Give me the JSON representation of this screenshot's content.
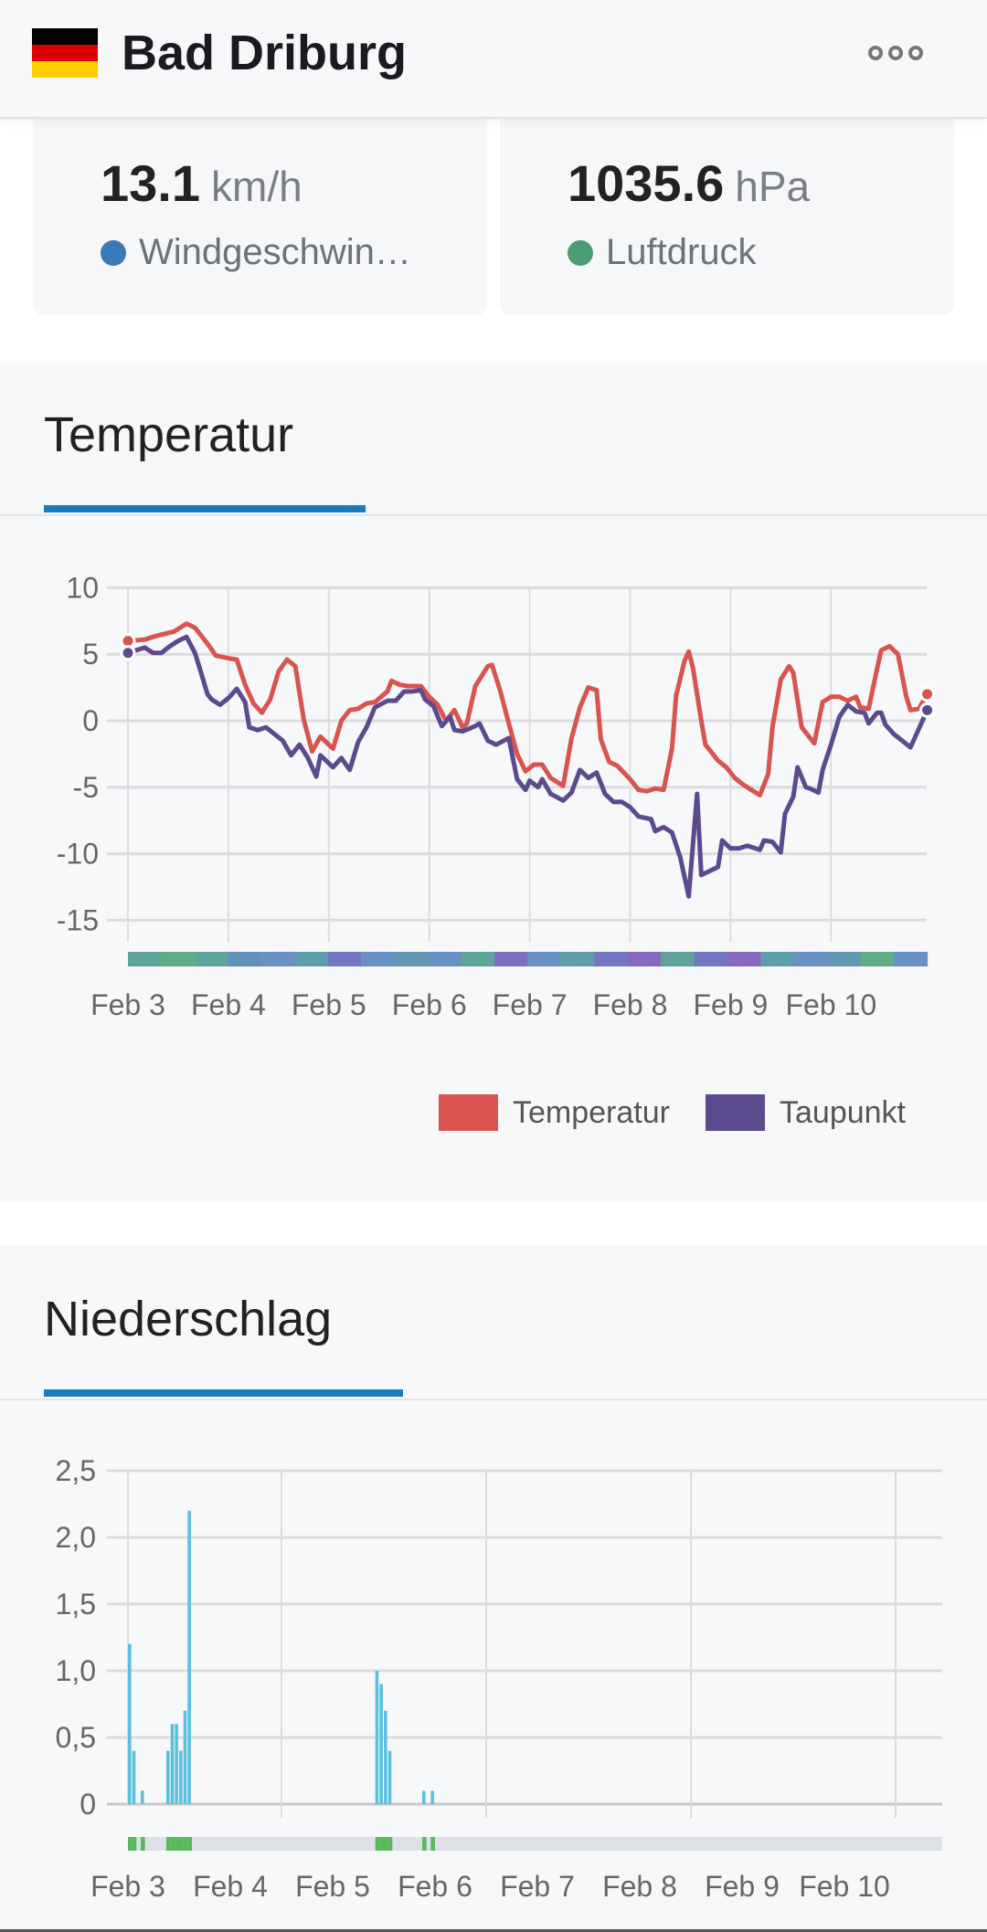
{
  "header": {
    "title": "Bad Driburg",
    "flag_colors": [
      "#000000",
      "#dd0000",
      "#ffce00"
    ],
    "menu_icon": "more-dots-icon"
  },
  "cards": [
    {
      "value": "13.1",
      "unit": "km/h",
      "label": "Windgeschwin…",
      "dot_color": "#3a7ab8"
    },
    {
      "value": "1035.6",
      "unit": "hPa",
      "label": "Luftdruck",
      "dot_color": "#4a9e74"
    }
  ],
  "temperature": {
    "title": "Temperatur",
    "legend": [
      {
        "label": "Temperatur",
        "color": "#d9534f"
      },
      {
        "label": "Taupunkt",
        "color": "#5c4a8f"
      }
    ]
  },
  "precipitation": {
    "title": "Niederschlag"
  },
  "chart_data": [
    {
      "type": "line",
      "title": "Temperatur",
      "x_unit": "hours since Feb 3 00:00",
      "x_ticks": [
        "Feb 3",
        "Feb 4",
        "Feb 5",
        "Feb 6",
        "Feb 7",
        "Feb 8",
        "Feb 9",
        "Feb 10"
      ],
      "y_ticks": [
        "10",
        "5",
        "0",
        "-5",
        "-10",
        "-15"
      ],
      "ylim": [
        -15,
        10
      ],
      "xlim": [
        0,
        191
      ],
      "grid": true,
      "legend_position": "bottom-right",
      "series": [
        {
          "name": "Temperatur",
          "color": "#d9534f",
          "points": [
            [
              0,
              6.0
            ],
            [
              4,
              6.1
            ],
            [
              7,
              6.4
            ],
            [
              11,
              6.7
            ],
            [
              14,
              7.3
            ],
            [
              16,
              7.0
            ],
            [
              19,
              5.8
            ],
            [
              21,
              4.9
            ],
            [
              24,
              4.7
            ],
            [
              26,
              4.6
            ],
            [
              28,
              2.7
            ],
            [
              30,
              1.3
            ],
            [
              32,
              0.6
            ],
            [
              34,
              1.6
            ],
            [
              36,
              3.7
            ],
            [
              38,
              4.6
            ],
            [
              40,
              4.1
            ],
            [
              42,
              0.1
            ],
            [
              44,
              -2.3
            ],
            [
              46,
              -1.2
            ],
            [
              48,
              -1.8
            ],
            [
              49,
              -2.1
            ],
            [
              51,
              0.0
            ],
            [
              53,
              0.8
            ],
            [
              55,
              0.9
            ],
            [
              57,
              1.3
            ],
            [
              59,
              1.4
            ],
            [
              62,
              2.2
            ],
            [
              63,
              3.0
            ],
            [
              65,
              2.7
            ],
            [
              67,
              2.6
            ],
            [
              70,
              2.6
            ],
            [
              72,
              1.8
            ],
            [
              74,
              1.2
            ],
            [
              76,
              0.0
            ],
            [
              78,
              0.8
            ],
            [
              80,
              -0.5
            ],
            [
              81,
              -0.2
            ],
            [
              83,
              2.6
            ],
            [
              86,
              4.1
            ],
            [
              87,
              4.2
            ],
            [
              89,
              2.2
            ],
            [
              91,
              -0.2
            ],
            [
              93,
              -2.5
            ],
            [
              95,
              -3.8
            ],
            [
              97,
              -3.3
            ],
            [
              99,
              -3.3
            ],
            [
              101,
              -4.3
            ],
            [
              104,
              -4.9
            ],
            [
              106,
              -1.3
            ],
            [
              108,
              1.0
            ],
            [
              110,
              2.5
            ],
            [
              112,
              2.3
            ],
            [
              113,
              -1.4
            ],
            [
              115,
              -3.1
            ],
            [
              117,
              -3.4
            ],
            [
              120,
              -4.4
            ],
            [
              122,
              -5.2
            ],
            [
              124,
              -5.3
            ],
            [
              126,
              -5.1
            ],
            [
              128,
              -5.2
            ],
            [
              130,
              -2.1
            ],
            [
              131,
              1.9
            ],
            [
              133,
              4.5
            ],
            [
              134,
              5.2
            ],
            [
              135,
              4.0
            ],
            [
              137,
              0.0
            ],
            [
              138,
              -1.8
            ],
            [
              141,
              -3.0
            ],
            [
              143,
              -3.5
            ],
            [
              145,
              -4.3
            ],
            [
              147,
              -4.8
            ],
            [
              149,
              -5.2
            ],
            [
              151,
              -5.6
            ],
            [
              153,
              -4.0
            ],
            [
              154,
              -0.5
            ],
            [
              156,
              3.1
            ],
            [
              158,
              4.1
            ],
            [
              159,
              3.6
            ],
            [
              161,
              -0.5
            ],
            [
              162,
              -0.9
            ],
            [
              164,
              -1.7
            ],
            [
              166,
              1.4
            ],
            [
              168,
              1.8
            ],
            [
              170,
              1.8
            ],
            [
              172,
              1.5
            ],
            [
              174,
              1.8
            ],
            [
              175,
              1.0
            ],
            [
              177,
              0.9
            ],
            [
              179,
              3.9
            ],
            [
              180,
              5.3
            ],
            [
              182,
              5.6
            ],
            [
              184,
              5.0
            ],
            [
              186,
              1.8
            ],
            [
              187,
              0.8
            ],
            [
              189,
              0.9
            ],
            [
              191,
              2.0
            ]
          ]
        },
        {
          "name": "Taupunkt",
          "color": "#5c4a8f",
          "points": [
            [
              0,
              5.1
            ],
            [
              4,
              5.5
            ],
            [
              6,
              5.1
            ],
            [
              8,
              5.1
            ],
            [
              10,
              5.6
            ],
            [
              12,
              6.0
            ],
            [
              14,
              6.3
            ],
            [
              16,
              5.1
            ],
            [
              17,
              4.1
            ],
            [
              19,
              2.0
            ],
            [
              20,
              1.6
            ],
            [
              22,
              1.2
            ],
            [
              24,
              1.7
            ],
            [
              26,
              2.4
            ],
            [
              28,
              1.4
            ],
            [
              29,
              -0.5
            ],
            [
              31,
              -0.7
            ],
            [
              33,
              -0.5
            ],
            [
              35,
              -1.0
            ],
            [
              37,
              -1.5
            ],
            [
              39,
              -2.6
            ],
            [
              41,
              -1.8
            ],
            [
              43,
              -2.8
            ],
            [
              45,
              -4.2
            ],
            [
              46,
              -2.6
            ],
            [
              49,
              -3.5
            ],
            [
              51,
              -2.8
            ],
            [
              53,
              -3.7
            ],
            [
              55,
              -1.6
            ],
            [
              57,
              -0.5
            ],
            [
              59,
              1.0
            ],
            [
              62,
              1.5
            ],
            [
              64,
              1.5
            ],
            [
              66,
              2.2
            ],
            [
              68,
              2.2
            ],
            [
              70,
              2.3
            ],
            [
              71,
              1.6
            ],
            [
              73,
              1.1
            ],
            [
              75,
              -0.4
            ],
            [
              77,
              0.3
            ],
            [
              78,
              -0.7
            ],
            [
              80,
              -0.8
            ],
            [
              83,
              -0.4
            ],
            [
              84,
              -0.2
            ],
            [
              86,
              -1.5
            ],
            [
              88,
              -1.8
            ],
            [
              91,
              -1.3
            ],
            [
              93,
              -4.4
            ],
            [
              95,
              -5.2
            ],
            [
              96,
              -4.5
            ],
            [
              98,
              -5.0
            ],
            [
              99,
              -4.4
            ],
            [
              101,
              -5.5
            ],
            [
              104,
              -6.0
            ],
            [
              106,
              -5.4
            ],
            [
              108,
              -3.7
            ],
            [
              110,
              -4.3
            ],
            [
              112,
              -3.9
            ],
            [
              114,
              -5.5
            ],
            [
              116,
              -6.1
            ],
            [
              118,
              -6.1
            ],
            [
              120,
              -6.5
            ],
            [
              122,
              -7.2
            ],
            [
              125,
              -7.4
            ],
            [
              126,
              -8.3
            ],
            [
              128,
              -8.0
            ],
            [
              130,
              -8.4
            ],
            [
              132,
              -10.3
            ],
            [
              134,
              -13.2
            ],
            [
              136,
              -5.5
            ],
            [
              137,
              -11.6
            ],
            [
              139,
              -11.3
            ],
            [
              141,
              -11.0
            ],
            [
              142,
              -9.0
            ],
            [
              144,
              -9.6
            ],
            [
              146,
              -9.6
            ],
            [
              148,
              -9.4
            ],
            [
              151,
              -9.7
            ],
            [
              152,
              -9.0
            ],
            [
              154,
              -9.1
            ],
            [
              156,
              -9.9
            ],
            [
              157,
              -7.0
            ],
            [
              159,
              -5.7
            ],
            [
              160,
              -3.5
            ],
            [
              162,
              -5.0
            ],
            [
              163,
              -5.1
            ],
            [
              165,
              -5.4
            ],
            [
              166,
              -3.7
            ],
            [
              168,
              -1.8
            ],
            [
              170,
              0.3
            ],
            [
              172,
              1.2
            ],
            [
              174,
              0.7
            ],
            [
              176,
              0.6
            ],
            [
              177,
              -0.2
            ],
            [
              179,
              0.6
            ],
            [
              180,
              0.6
            ],
            [
              181,
              -0.3
            ],
            [
              183,
              -1.0
            ],
            [
              185,
              -1.5
            ],
            [
              187,
              -2.0
            ],
            [
              189,
              -0.6
            ],
            [
              191,
              0.8
            ]
          ]
        }
      ],
      "condition_band_colors": [
        "#5fa39a",
        "#63ab84",
        "#5fa39a",
        "#6590b5",
        "#6b8fbf",
        "#5f9ea8",
        "#7278bf",
        "#6b8fbf",
        "#6596b0",
        "#6b8fbf",
        "#5fa39a",
        "#7b70c0",
        "#6b8fbf",
        "#5f9ea8",
        "#7278bf",
        "#8668bf",
        "#5fa39a",
        "#7278bf",
        "#8668bf",
        "#5f9ea8",
        "#6b8fbf",
        "#6596b0",
        "#63ab84",
        "#6b8fbf"
      ]
    },
    {
      "type": "bar",
      "title": "Niederschlag",
      "x_unit": "hours since Feb 3 00:00",
      "x_ticks": [
        "Feb 3",
        "Feb 4",
        "Feb 5",
        "Feb 6",
        "Feb 7",
        "Feb 8",
        "Feb 9",
        "Feb 10"
      ],
      "y_ticks": [
        "2,5",
        "2,0",
        "1,5",
        "1,0",
        "0,5",
        "0"
      ],
      "ylim": [
        0,
        2.5
      ],
      "xlim": [
        0,
        192
      ],
      "grid": true,
      "color": "#5bc0de",
      "bars": [
        [
          0,
          1.2
        ],
        [
          1,
          0.4
        ],
        [
          3,
          0.1
        ],
        [
          9,
          0.4
        ],
        [
          10,
          0.6
        ],
        [
          11,
          0.6
        ],
        [
          12,
          0.4
        ],
        [
          13,
          0.7
        ],
        [
          14,
          2.2
        ],
        [
          58,
          1.0
        ],
        [
          59,
          0.9
        ],
        [
          60,
          0.7
        ],
        [
          61,
          0.4
        ],
        [
          69,
          0.1
        ],
        [
          71,
          0.1
        ]
      ],
      "band_color": "#dde0e4",
      "band_active_color": "#5cb85c"
    }
  ]
}
